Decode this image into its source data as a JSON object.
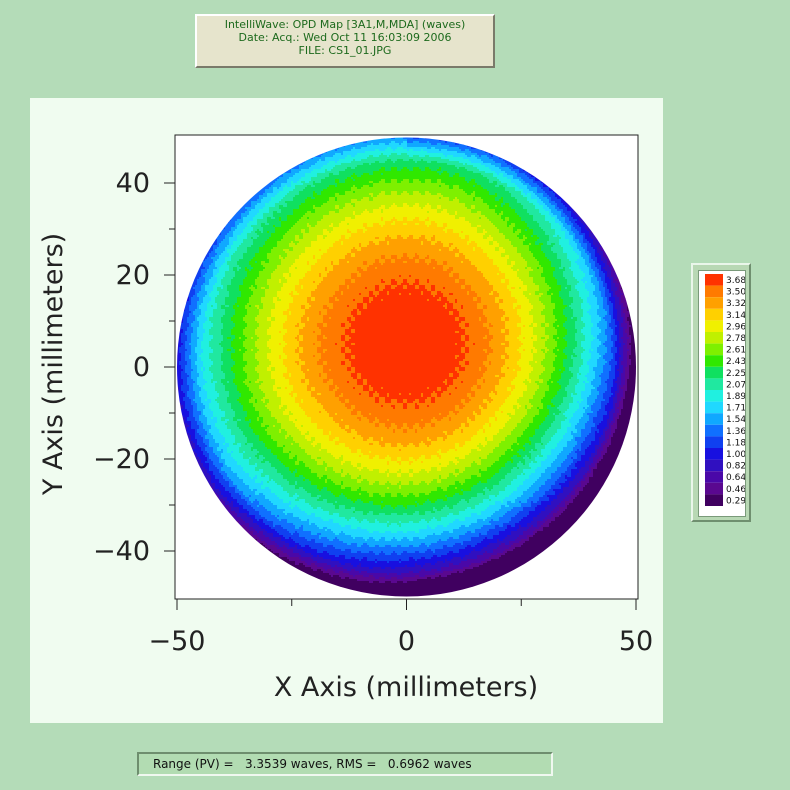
{
  "header": {
    "line1": "IntelliWave: OPD Map [3A1,M,MDA]  (waves)",
    "line2": "Date: Acq.: Wed Oct 11 16:03:09 2006",
    "line3": "FILE: CS1_01.JPG"
  },
  "footer": {
    "text": "Range (PV) =   3.3539 waves, RMS =   0.6962 waves"
  },
  "chart_data": {
    "type": "heatmap",
    "xlabel": "X Axis  (millimeters)",
    "ylabel": "Y Axis  (millimeters)",
    "xlim": [
      -50,
      50
    ],
    "ylim": [
      -50,
      50
    ],
    "x_ticks": [
      -50,
      0,
      50
    ],
    "y_ticks": [
      -40,
      -20,
      0,
      20,
      40
    ],
    "x_tick_labels": [
      "−50",
      "0",
      "50"
    ],
    "y_tick_labels": [
      "−40",
      "−20",
      "0",
      "20",
      "40"
    ],
    "aperture_radius": 50,
    "peak": {
      "x": 0,
      "y": 5,
      "value": 3.68
    },
    "value_range": [
      0.291,
      3.681
    ],
    "grid": false,
    "legend": {
      "placement": "right",
      "labels": [
        "3.681",
        "3.503",
        "3.324",
        "3.146",
        "2.967",
        "2.789",
        "2.610",
        "2.432",
        "2.254",
        "2.075",
        "1.897",
        "1.718",
        "1.540",
        "1.361",
        "1.183",
        "1.004",
        "0.826",
        "0.648",
        "0.469",
        "0.291"
      ],
      "colors": [
        "#ff3200",
        "#ff7a00",
        "#ffa000",
        "#ffd000",
        "#f0f000",
        "#c0f000",
        "#7ef000",
        "#30e800",
        "#10e060",
        "#20e8a0",
        "#20f0e0",
        "#20d8ff",
        "#10a8ff",
        "#1070ff",
        "#1040f0",
        "#1810e0",
        "#3010c0",
        "#4a08a8",
        "#5a0890",
        "#400060"
      ]
    }
  }
}
